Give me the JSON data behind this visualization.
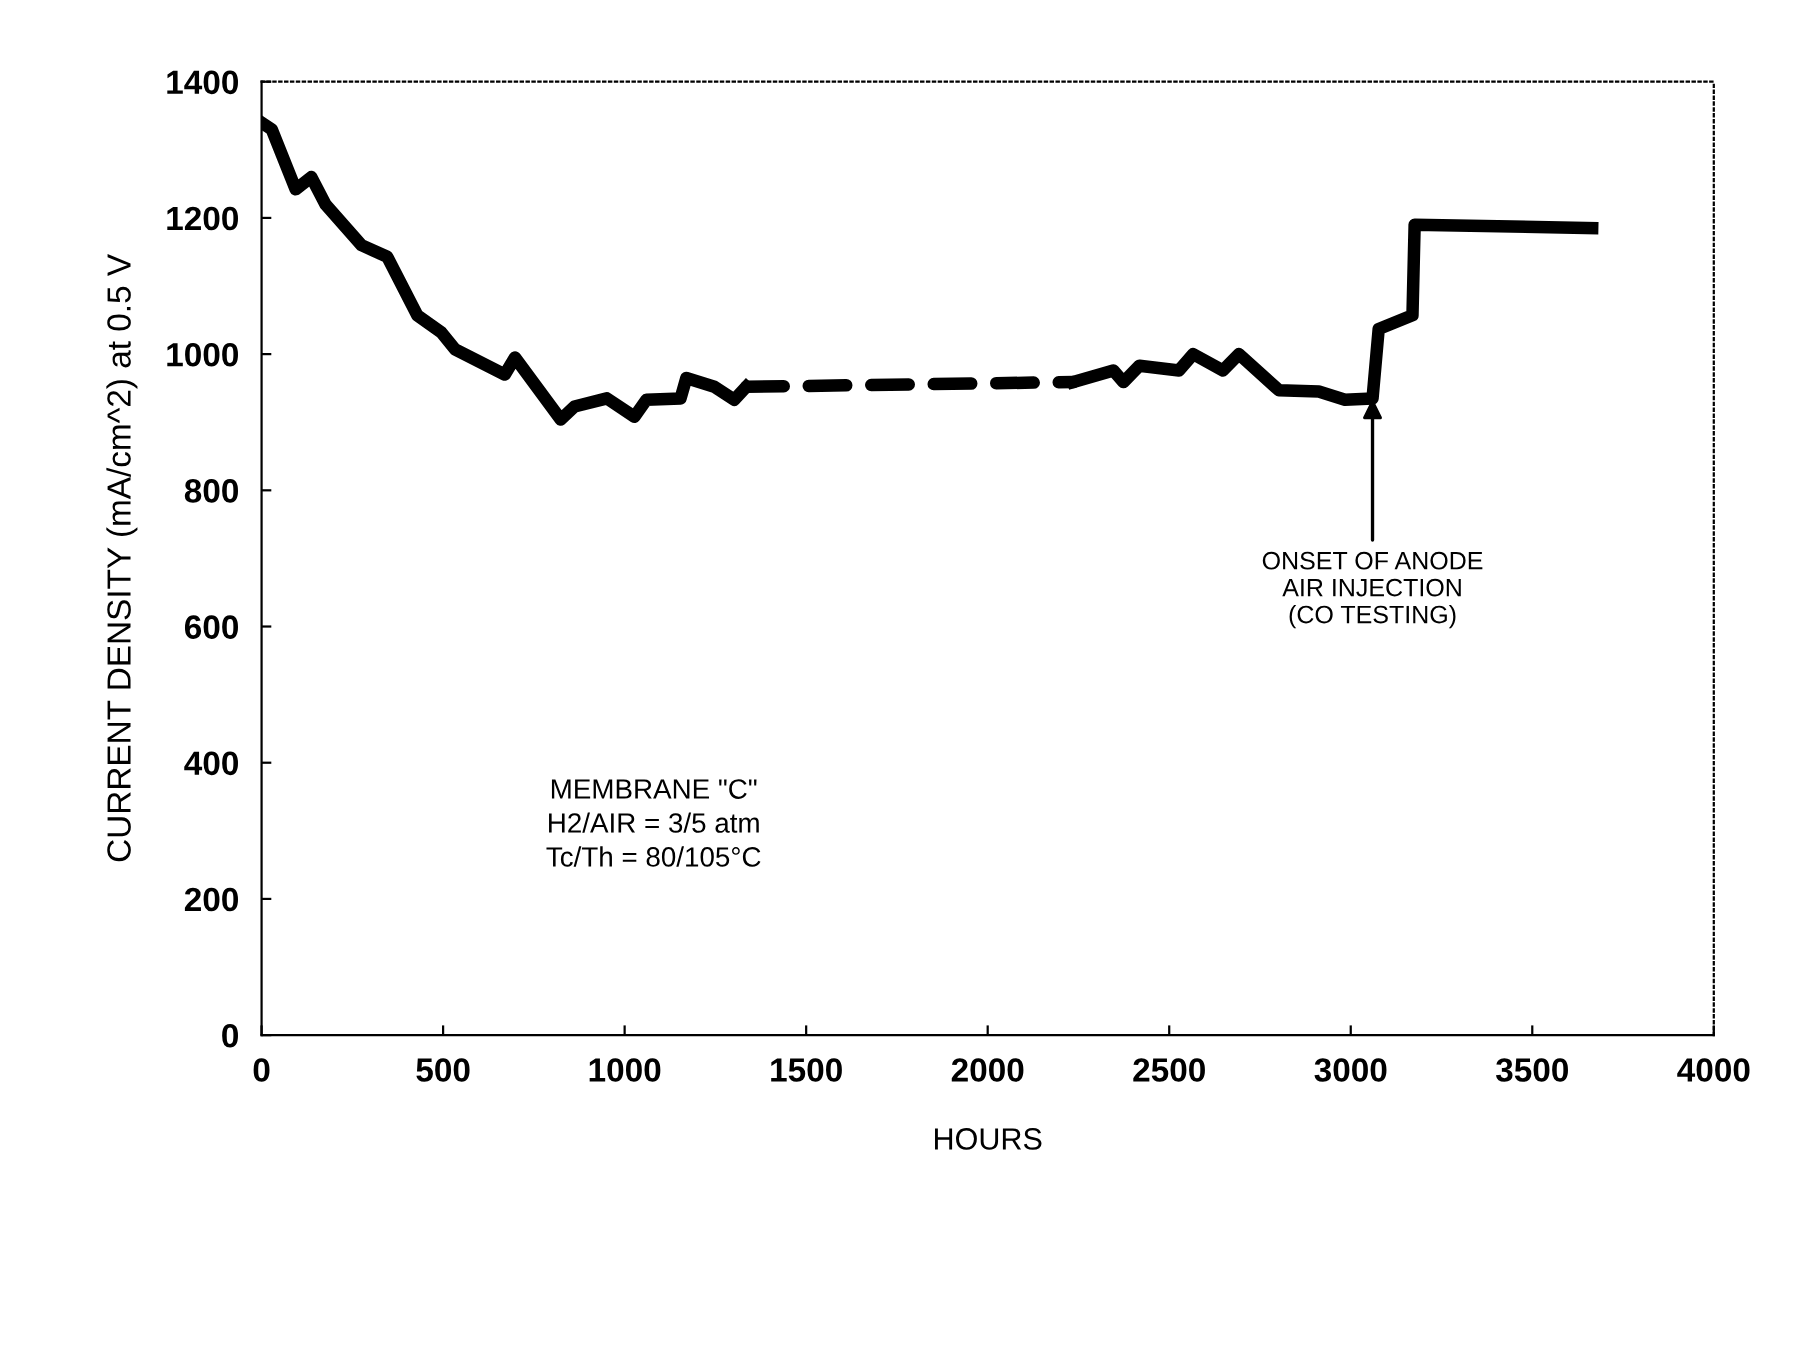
{
  "chart_data": {
    "type": "line",
    "xlabel": "HOURS",
    "ylabel": "CURRENT DENSITY (mA/cm^2) at 0.5 V",
    "xlim": [
      0,
      4000
    ],
    "xticks": [
      0,
      500,
      1000,
      1500,
      2000,
      2500,
      3000,
      3500,
      4000
    ],
    "ylim": [
      0,
      1400
    ],
    "yticks": [
      0,
      200,
      400,
      600,
      800,
      1000,
      1200,
      1400
    ],
    "grid": false,
    "legend": false,
    "marker": "none",
    "series": [
      {
        "color": "#000000",
        "line_style": "solid",
        "x": [
          0,
          28,
          94,
          137,
          176,
          275,
          346,
          429,
          495,
          533,
          670,
          698,
          824,
          862,
          951,
          1027,
          1060,
          1154,
          1170,
          1247,
          1302,
          1335
        ],
        "values": [
          1340,
          1330,
          1242,
          1260,
          1220,
          1160,
          1143,
          1057,
          1032,
          1007,
          970,
          995,
          904,
          923,
          935,
          908,
          933,
          935,
          965,
          952,
          933,
          952
        ]
      },
      {
        "color": "#000000",
        "line_style": "dashed",
        "x": [
          1335,
          2236
        ],
        "values": [
          952,
          959
        ]
      },
      {
        "color": "#000000",
        "line_style": "solid",
        "x": [
          2236,
          2346,
          2374,
          2418,
          2527,
          2566,
          2648,
          2692,
          2802,
          2912,
          2984,
          3060,
          3077,
          3170,
          3176,
          3665
        ],
        "values": [
          959,
          976,
          959,
          983,
          976,
          1000,
          976,
          1000,
          947,
          945,
          933,
          935,
          1037,
          1057,
          1190,
          1185
        ]
      }
    ],
    "annotations": [
      {
        "text": "ONSET OF ANODE\nAIR INJECTION\n(CO TESTING)",
        "x": 3060,
        "y": 935
      },
      "MEMBRANE \"C\"\nH2/AIR = 3/5 atm\nTc/Th = 80/105°C"
    ]
  }
}
